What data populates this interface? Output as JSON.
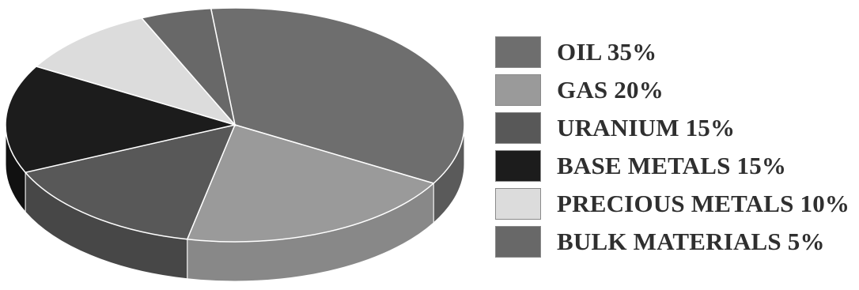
{
  "chart_data": {
    "type": "pie",
    "style": "3d",
    "title": "",
    "legend_position": "right",
    "slices": [
      {
        "label": "OIL 35%",
        "value": 35,
        "color": "#6e6e6e",
        "side_color": "#5a5a5a"
      },
      {
        "label": "GAS 20%",
        "value": 20,
        "color": "#9a9a9a",
        "side_color": "#888888"
      },
      {
        "label": "URANIUM 15%",
        "value": 15,
        "color": "#585858",
        "side_color": "#474747"
      },
      {
        "label": "BASE METALS 15%",
        "value": 15,
        "color": "#1c1c1c",
        "side_color": "#111111"
      },
      {
        "label": "PRECIOUS METALS 10%",
        "value": 10,
        "color": "#dcdcdc",
        "side_color": "#c8c8c8"
      },
      {
        "label": "BULK MATERIALS 5%",
        "value": 5,
        "color": "#686868",
        "side_color": "#565656"
      }
    ]
  }
}
